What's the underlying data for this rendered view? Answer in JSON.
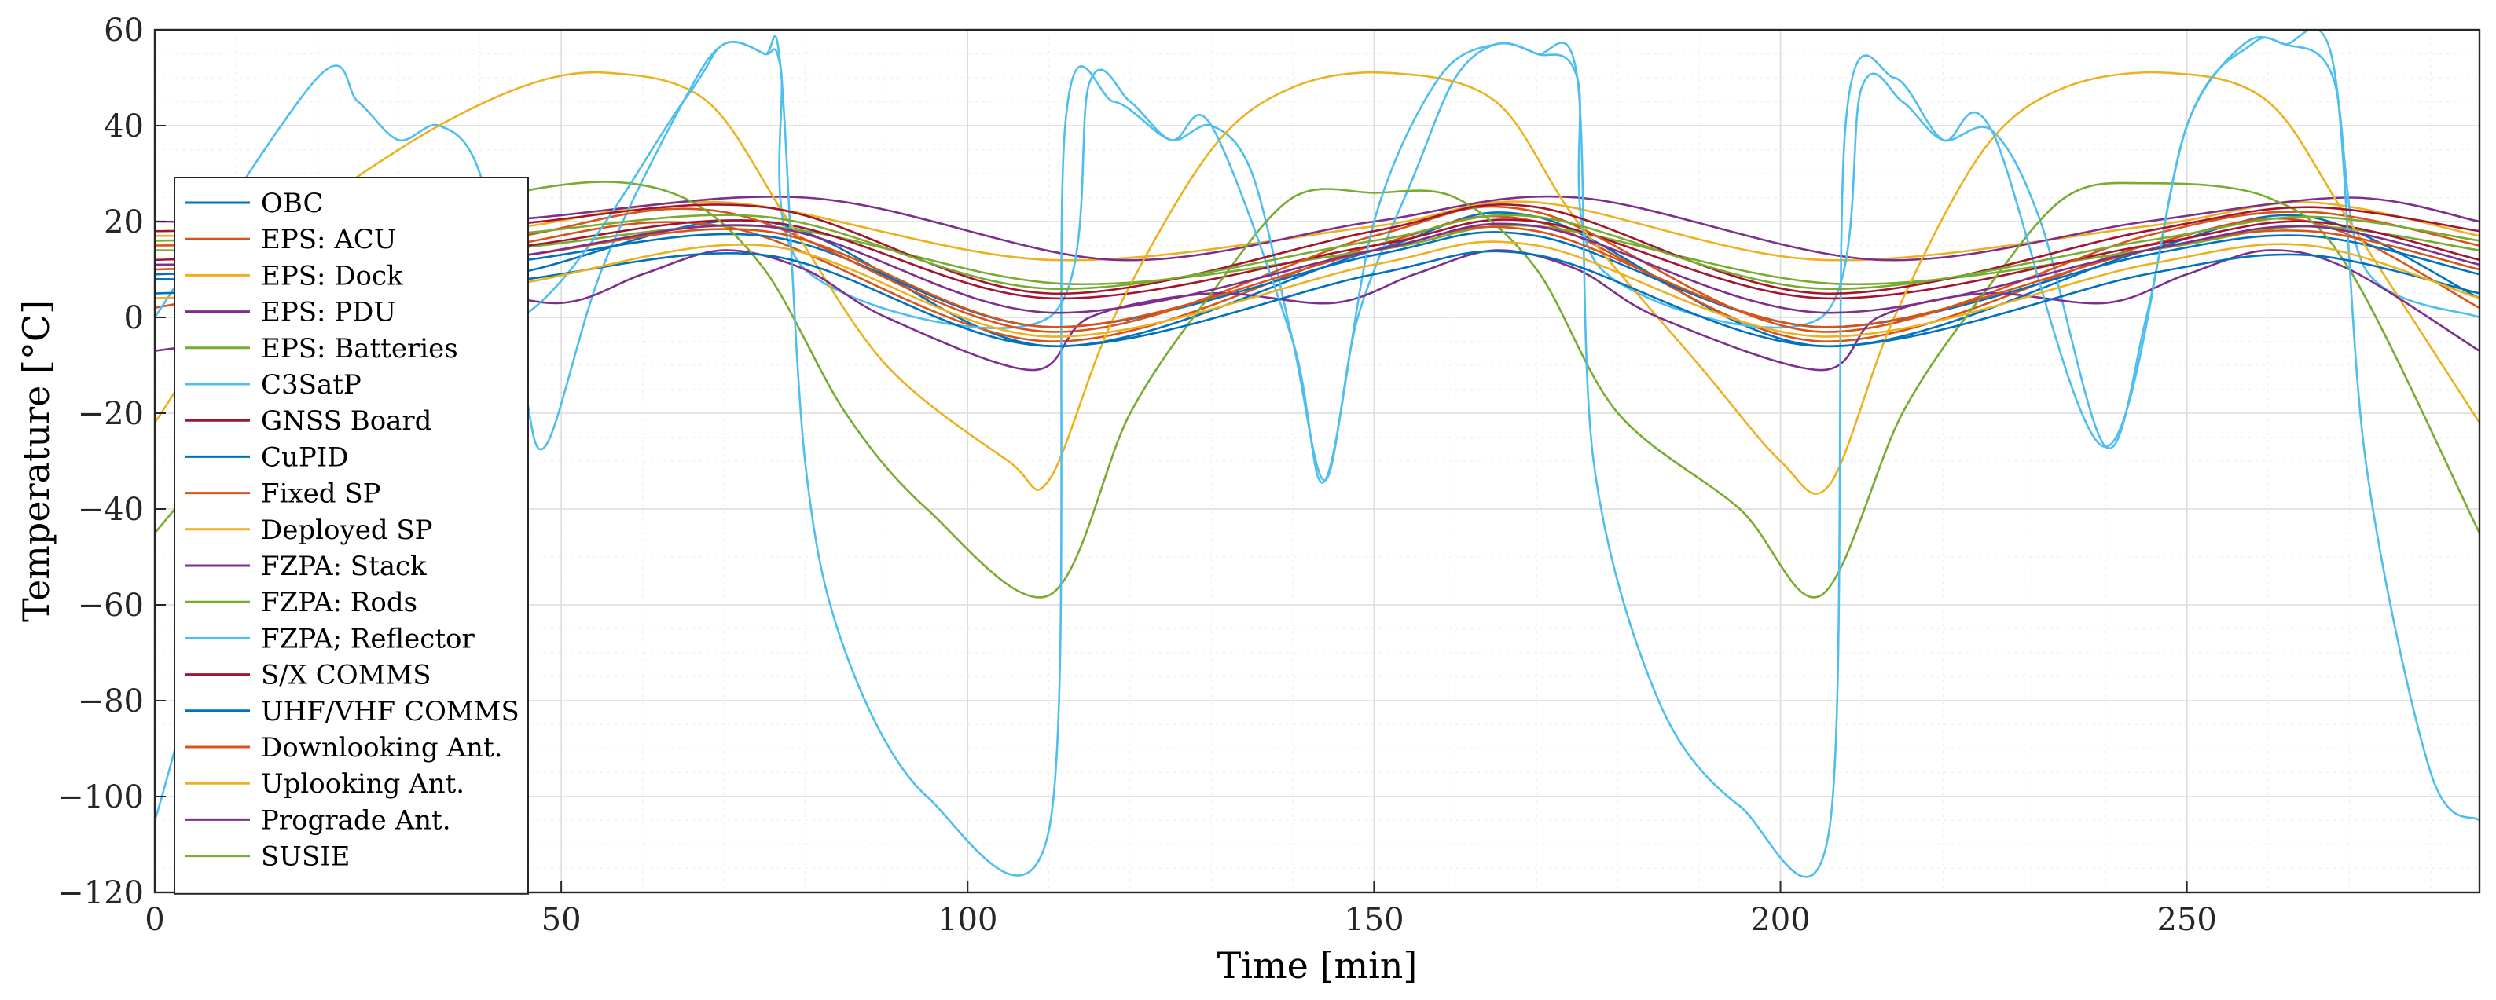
{
  "chart_data": {
    "type": "line",
    "xlabel": "Time [min]",
    "ylabel": "Temperature [°C]",
    "xlim": [
      0,
      286
    ],
    "ylim": [
      -120,
      60
    ],
    "xticks": [
      0,
      50,
      100,
      150,
      200,
      250
    ],
    "yticks": [
      -120,
      -100,
      -80,
      -60,
      -40,
      -20,
      0,
      20,
      40,
      60
    ],
    "x_minor_step": 10,
    "y_minor_step": 5,
    "grid": true,
    "legend_position": "left",
    "series": [
      {
        "name": "OBC",
        "color": "#0072BD",
        "points": [
          [
            0,
            8
          ],
          [
            40,
            8
          ],
          [
            75,
            20
          ],
          [
            110,
            -6
          ],
          [
            150,
            14
          ],
          [
            170,
            21
          ],
          [
            205,
            -6
          ],
          [
            245,
            14
          ],
          [
            265,
            21
          ],
          [
            286,
            4
          ]
        ]
      },
      {
        "name": "EPS: ACU",
        "color": "#D95319",
        "points": [
          [
            0,
            2
          ],
          [
            40,
            14
          ],
          [
            70,
            19
          ],
          [
            110,
            -5
          ],
          [
            150,
            15
          ],
          [
            170,
            20
          ],
          [
            205,
            -5
          ],
          [
            245,
            15
          ],
          [
            265,
            20
          ],
          [
            286,
            2
          ]
        ]
      },
      {
        "name": "EPS: Dock",
        "color": "#EDB120",
        "points": [
          [
            0,
            17
          ],
          [
            40,
            18
          ],
          [
            70,
            24
          ],
          [
            110,
            12
          ],
          [
            150,
            19
          ],
          [
            170,
            24
          ],
          [
            205,
            12
          ],
          [
            245,
            19
          ],
          [
            265,
            24
          ],
          [
            286,
            17
          ]
        ]
      },
      {
        "name": "EPS: PDU",
        "color": "#7E2F8E",
        "points": [
          [
            0,
            20
          ],
          [
            40,
            20
          ],
          [
            80,
            25
          ],
          [
            118,
            12
          ],
          [
            150,
            20
          ],
          [
            175,
            25
          ],
          [
            212,
            12
          ],
          [
            245,
            20
          ],
          [
            270,
            25
          ],
          [
            286,
            20
          ]
        ]
      },
      {
        "name": "EPS: Batteries",
        "color": "#77AC30",
        "points": [
          [
            0,
            14
          ],
          [
            40,
            14
          ],
          [
            75,
            19
          ],
          [
            112,
            7
          ],
          [
            150,
            14
          ],
          [
            170,
            19
          ],
          [
            207,
            7
          ],
          [
            245,
            14
          ],
          [
            265,
            19
          ],
          [
            286,
            14
          ]
        ]
      },
      {
        "name": "C3SatP",
        "color": "#4DBEEE",
        "points": [
          [
            0,
            0
          ],
          [
            20,
            50
          ],
          [
            25,
            45
          ],
          [
            30,
            37
          ],
          [
            35,
            40
          ],
          [
            40,
            30
          ],
          [
            45,
            -10
          ],
          [
            48,
            -27
          ],
          [
            55,
            10
          ],
          [
            65,
            45
          ],
          [
            70,
            57
          ],
          [
            75,
            55
          ],
          [
            77,
            52
          ],
          [
            80,
            10
          ],
          [
            110,
            0
          ],
          [
            115,
            49
          ],
          [
            120,
            45
          ],
          [
            125,
            37
          ],
          [
            130,
            40
          ],
          [
            135,
            30
          ],
          [
            140,
            -5
          ],
          [
            144,
            -34
          ],
          [
            148,
            0
          ],
          [
            155,
            30
          ],
          [
            160,
            50
          ],
          [
            165,
            57
          ],
          [
            170,
            55
          ],
          [
            175,
            50
          ],
          [
            178,
            10
          ],
          [
            205,
            0
          ],
          [
            210,
            48
          ],
          [
            215,
            45
          ],
          [
            220,
            37
          ],
          [
            226,
            39
          ],
          [
            232,
            20
          ],
          [
            240,
            -27
          ],
          [
            245,
            0
          ],
          [
            250,
            40
          ],
          [
            257,
            57
          ],
          [
            262,
            57
          ],
          [
            268,
            50
          ],
          [
            272,
            10
          ],
          [
            286,
            0
          ]
        ]
      },
      {
        "name": "GNSS Board",
        "color": "#A2142F",
        "points": [
          [
            0,
            12
          ],
          [
            40,
            14
          ],
          [
            75,
            20
          ],
          [
            110,
            4
          ],
          [
            150,
            15
          ],
          [
            170,
            20
          ],
          [
            205,
            4
          ],
          [
            245,
            15
          ],
          [
            265,
            20
          ],
          [
            286,
            12
          ]
        ]
      },
      {
        "name": "CuPID",
        "color": "#0072BD",
        "points": [
          [
            0,
            9
          ],
          [
            40,
            11
          ],
          [
            75,
            17
          ],
          [
            110,
            -2
          ],
          [
            150,
            13
          ],
          [
            170,
            17
          ],
          [
            205,
            -2
          ],
          [
            245,
            13
          ],
          [
            265,
            17
          ],
          [
            286,
            9
          ]
        ]
      },
      {
        "name": "Fixed SP",
        "color": "#D95319",
        "points": [
          [
            0,
            15
          ],
          [
            40,
            16
          ],
          [
            70,
            22
          ],
          [
            110,
            -3
          ],
          [
            150,
            17
          ],
          [
            170,
            22
          ],
          [
            205,
            -3
          ],
          [
            245,
            17
          ],
          [
            265,
            22
          ],
          [
            286,
            15
          ]
        ]
      },
      {
        "name": "Deployed SP",
        "color": "#EDB120",
        "points": [
          [
            0,
            -22
          ],
          [
            15,
            15
          ],
          [
            30,
            35
          ],
          [
            45,
            48
          ],
          [
            56,
            51
          ],
          [
            68,
            45
          ],
          [
            78,
            20
          ],
          [
            90,
            -10
          ],
          [
            105,
            -30
          ],
          [
            110,
            -34
          ],
          [
            118,
            0
          ],
          [
            130,
            35
          ],
          [
            140,
            48
          ],
          [
            152,
            51
          ],
          [
            165,
            45
          ],
          [
            175,
            20
          ],
          [
            190,
            -10
          ],
          [
            200,
            -30
          ],
          [
            206,
            -35
          ],
          [
            214,
            0
          ],
          [
            225,
            35
          ],
          [
            235,
            48
          ],
          [
            248,
            51
          ],
          [
            260,
            45
          ],
          [
            270,
            20
          ],
          [
            286,
            -22
          ]
        ]
      },
      {
        "name": "FZPA: Stack",
        "color": "#7E2F8E",
        "points": [
          [
            0,
            -7
          ],
          [
            20,
            -2
          ],
          [
            35,
            6
          ],
          [
            50,
            3
          ],
          [
            60,
            9
          ],
          [
            70,
            14
          ],
          [
            80,
            10
          ],
          [
            90,
            0
          ],
          [
            108,
            -11
          ],
          [
            115,
            0
          ],
          [
            130,
            5
          ],
          [
            145,
            3
          ],
          [
            155,
            9
          ],
          [
            165,
            14
          ],
          [
            175,
            10
          ],
          [
            185,
            0
          ],
          [
            205,
            -11
          ],
          [
            212,
            0
          ],
          [
            225,
            5
          ],
          [
            240,
            3
          ],
          [
            250,
            9
          ],
          [
            260,
            14
          ],
          [
            270,
            10
          ],
          [
            286,
            -7
          ]
        ]
      },
      {
        "name": "FZPA: Rods",
        "color": "#77AC30",
        "points": [
          [
            0,
            -45
          ],
          [
            20,
            -5
          ],
          [
            35,
            20
          ],
          [
            52,
            28
          ],
          [
            65,
            25
          ],
          [
            75,
            10
          ],
          [
            85,
            -20
          ],
          [
            95,
            -40
          ],
          [
            110,
            -58
          ],
          [
            120,
            -20
          ],
          [
            130,
            5
          ],
          [
            140,
            25
          ],
          [
            150,
            26
          ],
          [
            160,
            25
          ],
          [
            170,
            10
          ],
          [
            180,
            -20
          ],
          [
            195,
            -40
          ],
          [
            205,
            -58
          ],
          [
            215,
            -20
          ],
          [
            225,
            5
          ],
          [
            235,
            25
          ],
          [
            245,
            28
          ],
          [
            260,
            25
          ],
          [
            270,
            10
          ],
          [
            286,
            -45
          ]
        ]
      },
      {
        "name": "FZPA; Reflector",
        "color": "#4DBEEE",
        "points": [
          [
            0,
            -105
          ],
          [
            20,
            0
          ],
          [
            45,
            0
          ],
          [
            65,
            45
          ],
          [
            70,
            57
          ],
          [
            75,
            55
          ],
          [
            77,
            52
          ],
          [
            80,
            -30
          ],
          [
            85,
            -70
          ],
          [
            95,
            -100
          ],
          [
            110,
            -107
          ],
          [
            112,
            40
          ],
          [
            118,
            45
          ],
          [
            125,
            37
          ],
          [
            130,
            40
          ],
          [
            140,
            -5
          ],
          [
            144,
            -34
          ],
          [
            150,
            20
          ],
          [
            158,
            50
          ],
          [
            165,
            57
          ],
          [
            170,
            55
          ],
          [
            175,
            50
          ],
          [
            177,
            -30
          ],
          [
            185,
            -80
          ],
          [
            195,
            -102
          ],
          [
            206,
            -107
          ],
          [
            208,
            40
          ],
          [
            214,
            50
          ],
          [
            220,
            37
          ],
          [
            226,
            39
          ],
          [
            240,
            -27
          ],
          [
            250,
            40
          ],
          [
            258,
            57
          ],
          [
            262,
            57
          ],
          [
            268,
            53
          ],
          [
            272,
            -30
          ],
          [
            280,
            -95
          ],
          [
            286,
            -105
          ]
        ]
      },
      {
        "name": "S/X COMMS",
        "color": "#A2142F",
        "points": [
          [
            0,
            18
          ],
          [
            40,
            19
          ],
          [
            75,
            23
          ],
          [
            110,
            5
          ],
          [
            150,
            18
          ],
          [
            170,
            23
          ],
          [
            205,
            5
          ],
          [
            245,
            18
          ],
          [
            265,
            23
          ],
          [
            286,
            18
          ]
        ]
      },
      {
        "name": "UHF/VHF COMMS",
        "color": "#0072BD",
        "points": [
          [
            0,
            5
          ],
          [
            40,
            7
          ],
          [
            75,
            13
          ],
          [
            110,
            -6
          ],
          [
            150,
            9
          ],
          [
            170,
            13
          ],
          [
            205,
            -6
          ],
          [
            245,
            9
          ],
          [
            265,
            13
          ],
          [
            286,
            5
          ]
        ]
      },
      {
        "name": "Downlooking Ant.",
        "color": "#D95319",
        "points": [
          [
            0,
            10
          ],
          [
            40,
            12
          ],
          [
            75,
            18
          ],
          [
            110,
            -2
          ],
          [
            150,
            14
          ],
          [
            170,
            18
          ],
          [
            205,
            -2
          ],
          [
            245,
            14
          ],
          [
            265,
            18
          ],
          [
            286,
            10
          ]
        ]
      },
      {
        "name": "Uplooking Ant.",
        "color": "#EDB120",
        "points": [
          [
            0,
            4
          ],
          [
            40,
            6
          ],
          [
            75,
            15
          ],
          [
            110,
            -4
          ],
          [
            150,
            11
          ],
          [
            170,
            15
          ],
          [
            205,
            -4
          ],
          [
            245,
            11
          ],
          [
            265,
            15
          ],
          [
            286,
            4
          ]
        ]
      },
      {
        "name": "Prograde Ant.",
        "color": "#7E2F8E",
        "points": [
          [
            0,
            11
          ],
          [
            40,
            12
          ],
          [
            75,
            19
          ],
          [
            110,
            1
          ],
          [
            150,
            14
          ],
          [
            170,
            19
          ],
          [
            205,
            1
          ],
          [
            245,
            14
          ],
          [
            265,
            19
          ],
          [
            286,
            11
          ]
        ]
      },
      {
        "name": "SUSIE",
        "color": "#77AC30",
        "points": [
          [
            0,
            16
          ],
          [
            40,
            17
          ],
          [
            75,
            21
          ],
          [
            110,
            6
          ],
          [
            150,
            16
          ],
          [
            170,
            21
          ],
          [
            205,
            6
          ],
          [
            245,
            16
          ],
          [
            265,
            21
          ],
          [
            286,
            16
          ]
        ]
      }
    ]
  }
}
